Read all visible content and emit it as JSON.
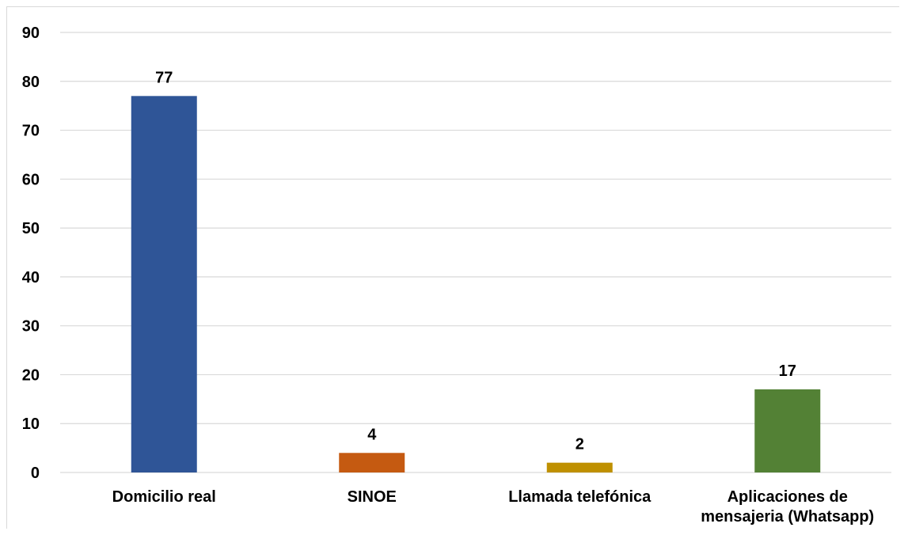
{
  "chart_data": {
    "type": "bar",
    "title": "",
    "xlabel": "",
    "ylabel": "",
    "categories": [
      [
        "Domicilio real"
      ],
      [
        "SINOE"
      ],
      [
        "Llamada telefónica"
      ],
      [
        "Aplicaciones de",
        "mensajeria (Whatsapp)"
      ]
    ],
    "values": [
      77,
      4,
      2,
      17
    ],
    "data_labels": [
      "77",
      "4",
      "2",
      "17"
    ],
    "colors": [
      "#2f5597",
      "#c55a11",
      "#bf9000",
      "#538135"
    ],
    "ylim": [
      0,
      90
    ],
    "yticks": [
      0,
      10,
      20,
      30,
      40,
      50,
      60,
      70,
      80,
      90
    ],
    "grid": true,
    "legend": "none"
  }
}
